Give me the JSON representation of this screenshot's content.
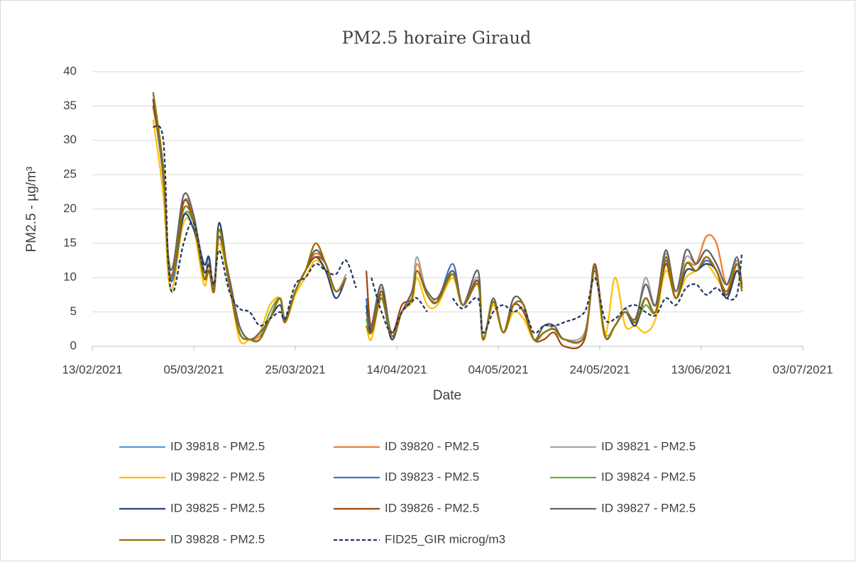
{
  "chart_data": {
    "type": "line",
    "title": "PM2.5 horaire Giraud",
    "x_label": "Date",
    "y_label": "PM2.5 - µg/m³",
    "x": [
      "25/02/2021",
      "27/02/2021",
      "28/02/2021",
      "01/03/2021",
      "03/03/2021",
      "05/03/2021",
      "07/03/2021",
      "08/03/2021",
      "09/03/2021",
      "10/03/2021",
      "12/03/2021",
      "14/03/2021",
      "16/03/2021",
      "18/03/2021",
      "20/03/2021",
      "22/03/2021",
      "23/03/2021",
      "25/03/2021",
      "27/03/2021",
      "29/03/2021",
      "31/03/2021",
      "02/04/2021",
      "04/04/2021",
      "06/04/2021",
      "08/04/2021",
      "09/04/2021",
      "11/04/2021",
      "13/04/2021",
      "15/04/2021",
      "17/04/2021",
      "18/04/2021",
      "20/04/2021",
      "22/04/2021",
      "25/04/2021",
      "27/04/2021",
      "30/04/2021",
      "01/05/2021",
      "03/05/2021",
      "05/05/2021",
      "07/05/2021",
      "09/05/2021",
      "11/05/2021",
      "13/05/2021",
      "15/05/2021",
      "17/05/2021",
      "21/05/2021",
      "23/05/2021",
      "25/05/2021",
      "27/05/2021",
      "29/05/2021",
      "31/05/2021",
      "02/06/2021",
      "04/06/2021",
      "06/06/2021",
      "08/06/2021",
      "10/06/2021",
      "12/06/2021",
      "14/06/2021",
      "16/06/2021",
      "18/06/2021",
      "20/06/2021",
      "21/06/2021"
    ],
    "xlim": [
      "13/02/2021",
      "03/07/2021"
    ],
    "xticks": [
      "13/02/2021",
      "05/03/2021",
      "25/03/2021",
      "14/04/2021",
      "04/05/2021",
      "24/05/2021",
      "13/06/2021",
      "03/07/2021"
    ],
    "ylim": [
      0,
      40
    ],
    "yticks": [
      0,
      5,
      10,
      15,
      20,
      25,
      30,
      35,
      40
    ],
    "grid": true,
    "legend": "bottom",
    "series": [
      {
        "name": "ID 39818 - PM2.5",
        "color": "#5b9bd5",
        "values": [
          35,
          26,
          12,
          10,
          19,
          18,
          11,
          12,
          9,
          16,
          9,
          2,
          1,
          1,
          4,
          7,
          4,
          8,
          11,
          13.5,
          12,
          8,
          10,
          null,
          4,
          2.5,
          7.5,
          1.5,
          5,
          7,
          11,
          7.5,
          6.5,
          10,
          6,
          9,
          1,
          6.5,
          2,
          6,
          6,
          1,
          2,
          2.5,
          1,
          1.5,
          11.5,
          1.5,
          3,
          5,
          3.5,
          7,
          5,
          12.5,
          7,
          12,
          11,
          12.5,
          11,
          7.5,
          12,
          8.5
        ]
      },
      {
        "name": "ID 39820 - PM2.5",
        "color": "#ed7d31",
        "values": [
          35,
          26,
          12,
          11,
          21,
          18,
          10,
          12,
          8,
          16,
          9,
          2,
          1,
          1.5,
          4,
          7,
          3.5,
          8,
          11,
          13.5,
          12,
          8,
          10,
          null,
          4,
          2.5,
          8,
          1.5,
          5,
          7,
          12,
          7.5,
          6.5,
          10.5,
          6,
          9.5,
          1,
          6.5,
          2,
          6,
          6,
          1,
          2,
          2.5,
          1,
          1.5,
          12,
          1.5,
          3,
          5,
          3.5,
          7,
          5,
          12,
          7,
          12,
          12,
          16,
          15,
          9,
          12.5,
          8.5
        ]
      },
      {
        "name": "ID 39821 - PM2.5",
        "color": "#a5a5a5",
        "values": [
          36,
          24,
          11,
          11,
          21,
          19,
          10,
          13,
          8,
          16,
          9,
          3,
          1,
          2,
          4,
          7,
          4,
          8,
          11,
          14,
          12,
          8,
          10.5,
          null,
          5,
          3,
          8.5,
          1.5,
          5,
          8,
          13,
          7.5,
          7,
          10.5,
          6,
          10,
          1,
          6.5,
          2,
          7,
          6,
          1,
          3,
          2.5,
          1,
          2,
          11,
          2,
          3,
          5.5,
          3.5,
          10,
          6,
          13.5,
          8,
          13,
          12,
          14,
          12,
          9,
          12.5,
          9
        ]
      },
      {
        "name": "ID 39822 - PM2.5",
        "color": "#ffc000",
        "values": [
          33,
          22,
          10,
          9,
          18,
          17,
          9,
          11,
          8,
          15,
          9,
          1,
          1,
          2,
          6,
          7,
          3.5,
          7.5,
          10,
          12.5,
          11,
          8,
          10,
          null,
          3,
          1,
          7,
          1.5,
          5,
          6.5,
          10,
          6,
          6,
          10,
          6,
          9,
          1,
          6,
          2,
          5,
          4,
          1,
          2,
          2.5,
          1,
          1.5,
          11,
          1.5,
          10,
          3,
          3,
          2,
          4,
          11,
          7,
          10,
          11,
          12,
          10,
          8,
          11,
          8
        ]
      },
      {
        "name": "ID 39823 - PM2.5",
        "color": "#4472c4",
        "values": [
          36,
          25,
          12,
          10,
          19,
          18,
          12,
          13,
          8,
          17,
          9,
          2,
          1,
          1,
          4,
          7,
          3.5,
          8,
          11,
          14,
          12,
          8,
          10,
          null,
          7,
          2,
          7.5,
          1.5,
          5,
          7,
          11,
          7.5,
          6.5,
          12,
          6,
          9.5,
          1,
          6.5,
          2,
          6,
          6,
          1,
          2,
          2.5,
          1,
          1.5,
          11.5,
          1.5,
          3,
          5,
          3.5,
          7,
          5,
          12.5,
          7,
          12,
          11,
          12.5,
          11,
          7.5,
          12,
          8.5
        ]
      },
      {
        "name": "ID 39824 - PM2.5",
        "color": "#70ad47",
        "values": [
          35,
          25,
          12,
          11,
          19,
          18,
          10,
          12,
          8,
          16,
          9,
          2,
          1,
          1,
          5,
          7,
          3.5,
          8,
          11,
          14,
          12,
          8,
          10,
          null,
          4,
          2,
          7.5,
          1.5,
          5,
          7,
          11,
          7.5,
          6.5,
          10.5,
          6,
          9,
          1,
          6.5,
          2,
          6,
          6,
          1,
          2,
          2.5,
          1,
          1.5,
          11.5,
          1.5,
          3,
          5,
          3.5,
          6,
          5,
          12,
          7,
          12,
          11,
          13,
          11,
          8,
          12,
          8.5
        ]
      },
      {
        "name": "ID 39825 - PM2.5",
        "color": "#264478",
        "values": [
          36,
          25,
          12,
          11,
          19,
          17,
          12,
          13,
          8,
          18,
          9,
          2,
          1,
          1,
          4,
          6,
          3.5,
          8,
          11,
          13,
          11,
          7,
          10,
          null,
          6,
          2,
          7,
          1,
          5,
          7,
          11,
          7.5,
          6.5,
          11,
          6,
          9,
          1,
          6.5,
          2,
          6,
          6,
          1,
          2,
          2.5,
          1,
          1.5,
          11,
          1.5,
          3,
          5,
          3,
          7,
          5,
          12,
          7,
          11,
          11,
          12,
          11,
          7,
          11,
          8.5
        ]
      },
      {
        "name": "ID 39826 - PM2.5",
        "color": "#9e480e",
        "values": [
          35,
          26,
          12,
          11,
          21,
          18,
          10,
          11,
          8,
          17,
          9,
          2,
          1,
          1,
          4,
          7,
          3.5,
          8,
          11,
          13,
          12,
          8,
          10,
          null,
          11,
          2.5,
          8,
          2,
          6,
          7,
          11,
          7.5,
          6.5,
          11,
          6,
          9.5,
          1,
          6.5,
          2,
          6,
          5,
          1,
          1,
          2,
          0,
          1,
          12,
          1.5,
          3,
          5,
          3.5,
          7,
          5,
          12,
          7,
          12,
          11,
          13,
          11,
          7.5,
          12,
          8.5
        ]
      },
      {
        "name": "ID 39827 - PM2.5",
        "color": "#636363",
        "values": [
          37,
          25,
          13,
          12,
          22,
          19,
          11,
          12,
          9,
          16,
          10,
          3,
          1,
          2,
          4,
          7,
          4,
          8,
          11,
          14,
          12,
          8,
          10,
          null,
          5,
          3,
          9,
          1.5,
          5,
          8,
          11,
          8,
          7,
          11,
          6,
          11,
          1,
          7,
          2,
          7,
          6,
          1,
          3,
          3,
          1,
          1.5,
          11.5,
          1.5,
          3,
          5,
          4,
          9,
          6,
          14,
          8,
          14,
          12,
          14,
          12,
          9,
          13,
          9
        ]
      },
      {
        "name": "ID 39828 - PM2.5",
        "color": "#997300",
        "values": [
          37,
          26,
          12,
          11,
          20,
          18,
          10,
          12,
          8,
          17,
          9,
          2,
          1,
          1,
          4,
          7,
          3.5,
          8,
          11,
          15,
          12,
          8,
          10,
          null,
          3,
          2,
          7,
          1.5,
          5,
          7,
          11,
          7.5,
          6.5,
          10.5,
          6,
          9,
          1,
          6.5,
          2,
          6,
          6,
          1,
          2,
          2.5,
          1,
          1.5,
          11,
          1.5,
          3,
          5,
          3.5,
          7,
          5,
          13,
          7,
          12,
          11,
          13,
          11,
          8,
          12,
          8
        ]
      },
      {
        "name": "FID25_GIR microg/m3",
        "color": "#203864",
        "dashed": true,
        "values": [
          32,
          30,
          12,
          8,
          15,
          18,
          11,
          12,
          9,
          14,
          8,
          5.5,
          5,
          3,
          4,
          5,
          4,
          9,
          10,
          12,
          11,
          10.5,
          12.5,
          8.5,
          null,
          10,
          5,
          2,
          5,
          6.5,
          7,
          5,
          null,
          7,
          5.5,
          7,
          2,
          5,
          6,
          5,
          5.5,
          2,
          3,
          3,
          3.5,
          5,
          10,
          4,
          4,
          5.5,
          6,
          5,
          4.5,
          7,
          6,
          8.5,
          9,
          7.5,
          8.5,
          7,
          7.5,
          13.5
        ]
      }
    ]
  }
}
